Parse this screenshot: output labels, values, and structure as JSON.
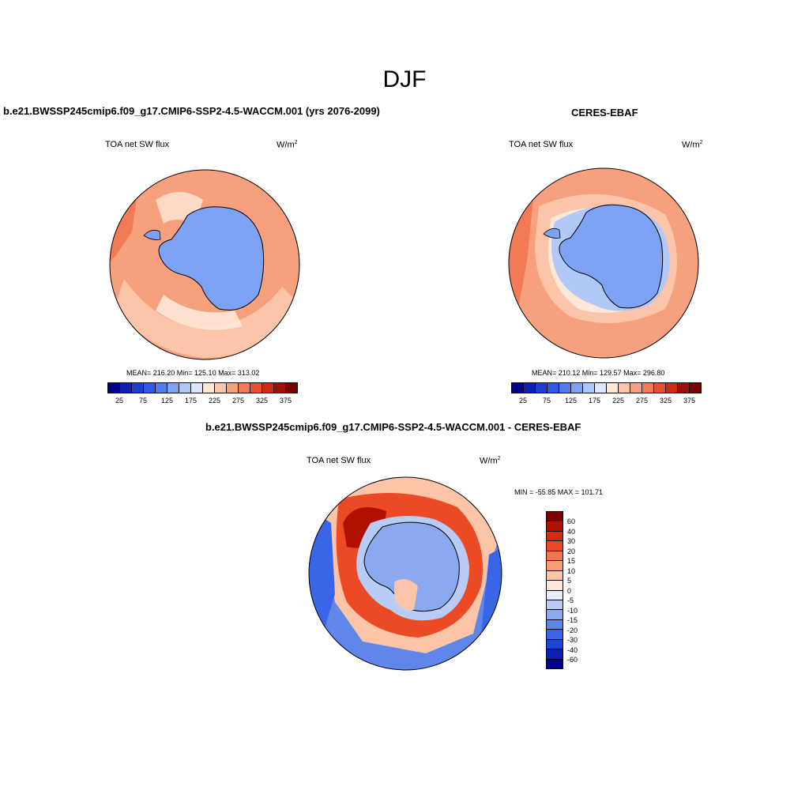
{
  "season": "DJF",
  "panel_left": {
    "title": "b.e21.BWSSP245cmip6.f09_g17.CMIP6-SSP2-4.5-WACCM.001 (yrs 2076-2099)",
    "variable": "TOA net SW flux",
    "units_base": "W/m",
    "units_exp": "2",
    "stats": "MEAN= 216.20  Min= 125.10  Max= 313.02",
    "colorbar_labels": [
      "25",
      "75",
      "125",
      "175",
      "225",
      "275",
      "325",
      "375"
    ]
  },
  "panel_right": {
    "title": "CERES-EBAF",
    "variable": "TOA net SW flux",
    "units_base": "W/m",
    "units_exp": "2",
    "stats": "MEAN= 210.12  Min= 129.57  Max= 296.80",
    "colorbar_labels": [
      "25",
      "75",
      "125",
      "175",
      "225",
      "275",
      "325",
      "375"
    ]
  },
  "panel_diff": {
    "title": "b.e21.BWSSP245cmip6.f09_g17.CMIP6-SSP2-4.5-WACCM.001 - CERES-EBAF",
    "variable": "TOA net SW flux",
    "units_base": "W/m",
    "units_exp": "2",
    "stats": "MIN = -55.85 MAX = 101.71",
    "colorbar_labels": [
      "60",
      "40",
      "30",
      "20",
      "15",
      "10",
      "5",
      "0",
      "-5",
      "-10",
      "-15",
      "-20",
      "-30",
      "-40",
      "-60"
    ]
  },
  "colors": {
    "abs_scale": [
      "#00008b",
      "#0b1fb0",
      "#1d3fd0",
      "#2e5ae6",
      "#4f7df0",
      "#7ea2f5",
      "#b0c9f8",
      "#dde9fb",
      "#ffe8d8",
      "#fcc5aa",
      "#f7a07e",
      "#f27a55",
      "#e85030",
      "#cf2a14",
      "#a00e05",
      "#7a0000"
    ],
    "diff_scale": [
      "#7a0000",
      "#b01000",
      "#d92a10",
      "#ec4a25",
      "#f57448",
      "#f99a72",
      "#fdc4a8",
      "#fde6da",
      "#e6edfb",
      "#b8ccf6",
      "#8ba9ef",
      "#5f86ea",
      "#3966e6",
      "#1a45d8",
      "#0a20b4",
      "#00008b"
    ],
    "land": "#7ea2f5",
    "ocean_model": "#f7a07e",
    "ocean_obs": "#f4b294"
  }
}
